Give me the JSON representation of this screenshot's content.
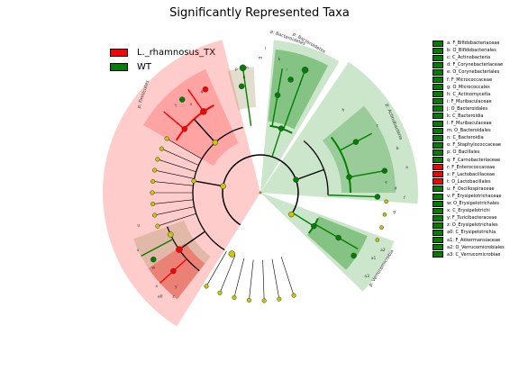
{
  "title": "Significantly Represented Taxa",
  "colors": {
    "red": "#ff0000",
    "green": "#008000",
    "node_yellow": "#c8c800",
    "bg": "#ffffff"
  },
  "legend": [
    {
      "label": "L._rhamnosus_TX",
      "color": "#ff0000"
    },
    {
      "label": "WT",
      "color": "#008000"
    }
  ],
  "sector_labels": {
    "firmicutes": "p: Firmicutes",
    "bacteroidetes_a": "p: Bacteroidetes",
    "bacteroidetes_b": "p: Bacteroidetes",
    "actinobacteria": "p: Actinobacteria",
    "verrucomicrobia": "p: Verrucomicrobia"
  },
  "clade_letters": [
    "a",
    "b",
    "c",
    "d",
    "e",
    "f",
    "g",
    "h",
    "i",
    "j",
    "k",
    "l",
    "m",
    "n",
    "o",
    "p",
    "q",
    "r",
    "s",
    "t",
    "u",
    "v",
    "w",
    "x",
    "y",
    "z",
    "a0",
    "a1",
    "a2",
    "a3"
  ],
  "key": [
    {
      "text": "a: F_Bifidobacteriaceae",
      "color": "green"
    },
    {
      "text": "b: O_Bifidobacteriales",
      "color": "green"
    },
    {
      "text": "c: C_Actinobacteria",
      "color": "green"
    },
    {
      "text": "d: F_Corynebacteriaceae",
      "color": "green"
    },
    {
      "text": "e: O_Corynebacteriales",
      "color": "green"
    },
    {
      "text": "f: F_Micrococcaceae",
      "color": "green"
    },
    {
      "text": "g: O_Micrococcales",
      "color": "green"
    },
    {
      "text": "h: C_Actinomycetia",
      "color": "green"
    },
    {
      "text": "i: F_Muribaculaceae",
      "color": "green"
    },
    {
      "text": "j: O_Bacteroidales",
      "color": "green"
    },
    {
      "text": "k: C_Bacteroidia",
      "color": "green"
    },
    {
      "text": "l: F_Muribaculaceae",
      "color": "green"
    },
    {
      "text": "m: O_Bacteroidales",
      "color": "green"
    },
    {
      "text": "n: C_Bacteroidia",
      "color": "green"
    },
    {
      "text": "o: F_Staphylococcaceae",
      "color": "green"
    },
    {
      "text": "p: O_Bacillales",
      "color": "green"
    },
    {
      "text": "q: F_Carnobacteriaceae",
      "color": "green"
    },
    {
      "text": "r: F_Enterococcaceae",
      "color": "red"
    },
    {
      "text": "s: F_Lactobacillaceae",
      "color": "red"
    },
    {
      "text": "t: O_Lactobacillales",
      "color": "red"
    },
    {
      "text": "u: F_Oscillospiraceae",
      "color": "green"
    },
    {
      "text": "v: F_Erysipelotrichaceae",
      "color": "green"
    },
    {
      "text": "w: O_Erysipelotrichales",
      "color": "green"
    },
    {
      "text": "x: C_Erysipelotrichi",
      "color": "green"
    },
    {
      "text": "y: F_Turicibacteraceae",
      "color": "green"
    },
    {
      "text": "z: O_Erysipelotrichales",
      "color": "green"
    },
    {
      "text": "a0: C_Erysipelotrichia",
      "color": "green"
    },
    {
      "text": "a1: F_Akkermansiaceae",
      "color": "green"
    },
    {
      "text": "a2: O_Verrucomicrobiales",
      "color": "green"
    },
    {
      "text": "a3: C_Verrucomicrobiae",
      "color": "green"
    }
  ]
}
